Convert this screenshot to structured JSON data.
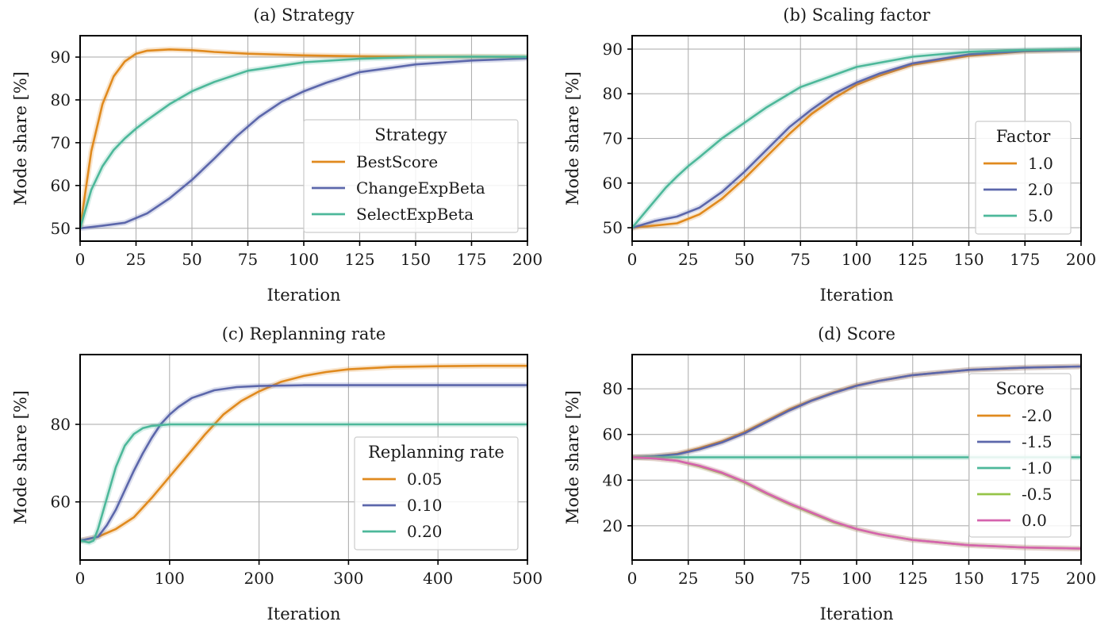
{
  "chart_data": [
    {
      "type": "line",
      "title": "(a) Strategy",
      "xlabel": "Iteration",
      "ylabel": "Mode share [%]",
      "xlim": [
        0,
        200
      ],
      "ylim": [
        47,
        95
      ],
      "xticks": [
        0,
        25,
        50,
        75,
        100,
        125,
        150,
        175,
        200
      ],
      "yticks": [
        50,
        60,
        70,
        80,
        90
      ],
      "grid": true,
      "legend": {
        "title": "Strategy",
        "position": "center-right"
      },
      "series": [
        {
          "name": "BestScore",
          "color": "#E08A1E",
          "x": [
            0,
            5,
            10,
            15,
            20,
            25,
            30,
            40,
            50,
            60,
            75,
            100,
            125,
            150,
            175,
            200
          ],
          "y": [
            50,
            68,
            79,
            85.5,
            89,
            90.8,
            91.5,
            91.8,
            91.6,
            91.2,
            90.8,
            90.4,
            90.2,
            90.1,
            90.1,
            90
          ]
        },
        {
          "name": "ChangeExpBeta",
          "color": "#5C67AB",
          "x": [
            0,
            10,
            20,
            30,
            40,
            50,
            60,
            70,
            80,
            90,
            100,
            110,
            125,
            150,
            175,
            200
          ],
          "y": [
            50,
            50.6,
            51.3,
            53.5,
            57,
            61.3,
            66.3,
            71.5,
            76,
            79.5,
            82,
            84,
            86.5,
            88.3,
            89.2,
            89.7
          ]
        },
        {
          "name": "SelectExpBeta",
          "color": "#4DB89A",
          "x": [
            0,
            5,
            10,
            15,
            20,
            25,
            30,
            40,
            50,
            60,
            75,
            100,
            125,
            150,
            175,
            200
          ],
          "y": [
            50,
            59,
            64.5,
            68.3,
            71,
            73.3,
            75.3,
            79,
            82,
            84.2,
            86.8,
            88.8,
            89.6,
            90,
            90.1,
            90.1
          ]
        }
      ]
    },
    {
      "type": "line",
      "title": "(b) Scaling factor",
      "xlabel": "Iteration",
      "ylabel": "Mode share [%]",
      "xlim": [
        0,
        200
      ],
      "ylim": [
        47,
        93
      ],
      "xticks": [
        0,
        25,
        50,
        75,
        100,
        125,
        150,
        175,
        200
      ],
      "yticks": [
        50,
        60,
        70,
        80,
        90
      ],
      "grid": true,
      "legend": {
        "title": "Factor",
        "position": "center-right"
      },
      "series": [
        {
          "name": "1.0",
          "color": "#E08A1E",
          "x": [
            0,
            10,
            20,
            30,
            40,
            50,
            60,
            70,
            80,
            90,
            100,
            110,
            125,
            150,
            175,
            200
          ],
          "y": [
            50,
            50.5,
            51,
            53,
            56.5,
            61,
            66,
            71,
            75.5,
            79,
            82,
            84,
            86.5,
            88.5,
            89.5,
            89.8
          ]
        },
        {
          "name": "2.0",
          "color": "#5C67AB",
          "x": [
            0,
            10,
            20,
            30,
            40,
            50,
            60,
            70,
            80,
            90,
            100,
            110,
            125,
            150,
            175,
            200
          ],
          "y": [
            50,
            51.5,
            52.5,
            54.5,
            58,
            62.5,
            67.5,
            72.5,
            76.5,
            80,
            82.5,
            84.5,
            86.8,
            88.8,
            89.6,
            89.8
          ]
        },
        {
          "name": "5.0",
          "color": "#4DB89A",
          "x": [
            0,
            5,
            10,
            15,
            20,
            25,
            30,
            40,
            50,
            60,
            75,
            100,
            125,
            150,
            175,
            200
          ],
          "y": [
            50,
            53,
            56,
            59,
            61.5,
            63.8,
            65.8,
            70,
            73.5,
            77,
            81.5,
            86,
            88.3,
            89.4,
            89.8,
            90
          ]
        }
      ]
    },
    {
      "type": "line",
      "title": "(c) Replanning rate",
      "xlabel": "Iteration",
      "ylabel": "Mode share [%]",
      "xlim": [
        0,
        500
      ],
      "ylim": [
        45,
        98
      ],
      "xticks": [
        0,
        100,
        200,
        300,
        400,
        500
      ],
      "yticks": [
        60,
        80
      ],
      "grid": true,
      "legend": {
        "title": "Replanning rate",
        "position": "lower-right"
      },
      "series": [
        {
          "name": "0.05",
          "color": "#E08A1E",
          "x": [
            0,
            20,
            40,
            60,
            80,
            100,
            120,
            140,
            160,
            180,
            200,
            225,
            250,
            275,
            300,
            350,
            400,
            450,
            500
          ],
          "y": [
            50,
            51,
            53,
            56,
            61,
            66.5,
            72,
            77.5,
            82.5,
            86,
            88.5,
            91,
            92.5,
            93.5,
            94.2,
            94.8,
            95,
            95.1,
            95.1
          ]
        },
        {
          "name": "0.10",
          "color": "#5C67AB",
          "x": [
            0,
            20,
            30,
            40,
            50,
            60,
            70,
            80,
            90,
            100,
            110,
            125,
            150,
            175,
            200,
            250,
            300,
            400,
            500
          ],
          "y": [
            50,
            51,
            54,
            58,
            63,
            68,
            72.5,
            76.5,
            80,
            82.5,
            84.5,
            86.8,
            88.8,
            89.6,
            89.9,
            90.1,
            90.1,
            90.1,
            90.1
          ]
        },
        {
          "name": "0.20",
          "color": "#4DB89A",
          "x": [
            0,
            10,
            15,
            20,
            30,
            40,
            50,
            60,
            70,
            80,
            100,
            120,
            150,
            200,
            300,
            400,
            500
          ],
          "y": [
            50,
            49.5,
            50,
            53,
            61,
            69,
            74.5,
            77.5,
            79,
            79.6,
            80,
            80,
            80,
            80,
            80,
            80,
            80
          ]
        }
      ]
    },
    {
      "type": "line",
      "title": "(d) Score",
      "xlabel": "Iteration",
      "ylabel": "Mode share [%]",
      "xlim": [
        0,
        200
      ],
      "ylim": [
        5,
        95
      ],
      "xticks": [
        0,
        25,
        50,
        75,
        100,
        125,
        150,
        175,
        200
      ],
      "yticks": [
        20,
        40,
        60,
        80
      ],
      "grid": true,
      "legend": {
        "title": "Score",
        "position": "right"
      },
      "series": [
        {
          "name": "-2.0",
          "color": "#E08A1E",
          "x": [
            0,
            10,
            20,
            30,
            40,
            50,
            60,
            70,
            80,
            90,
            100,
            110,
            125,
            150,
            175,
            200
          ],
          "y": [
            50,
            50.5,
            51.5,
            54,
            57,
            61,
            66,
            71,
            75,
            78.5,
            81.5,
            83.5,
            86,
            88.3,
            89.3,
            89.8
          ]
        },
        {
          "name": "-1.5",
          "color": "#5C67AB",
          "x": [
            0,
            10,
            20,
            30,
            40,
            50,
            60,
            70,
            80,
            90,
            100,
            110,
            125,
            150,
            175,
            200
          ],
          "y": [
            50,
            50.5,
            51.3,
            53.5,
            56.5,
            60.5,
            65.5,
            70.5,
            74.8,
            78.3,
            81.3,
            83.5,
            86,
            88.3,
            89.3,
            89.8
          ]
        },
        {
          "name": "-1.0",
          "color": "#4DB89A",
          "x": [
            0,
            50,
            100,
            150,
            200
          ],
          "y": [
            50,
            50,
            50,
            50,
            50
          ]
        },
        {
          "name": "-0.5",
          "color": "#96C449",
          "x": [
            0,
            10,
            20,
            30,
            40,
            50,
            60,
            70,
            80,
            90,
            100,
            110,
            125,
            150,
            175,
            200
          ],
          "y": [
            50,
            49.5,
            48.5,
            46,
            43,
            39,
            34,
            29.5,
            25.5,
            21.5,
            18.5,
            16.3,
            13.8,
            11.5,
            10.5,
            10
          ]
        },
        {
          "name": "0.0",
          "color": "#D564AE",
          "x": [
            0,
            10,
            20,
            30,
            40,
            50,
            60,
            70,
            80,
            90,
            100,
            110,
            125,
            150,
            175,
            200
          ],
          "y": [
            50,
            49.5,
            48.5,
            46.3,
            43.3,
            39.3,
            34.3,
            29.8,
            25.8,
            21.8,
            18.6,
            16.3,
            13.8,
            11.5,
            10.5,
            10
          ]
        }
      ]
    }
  ]
}
